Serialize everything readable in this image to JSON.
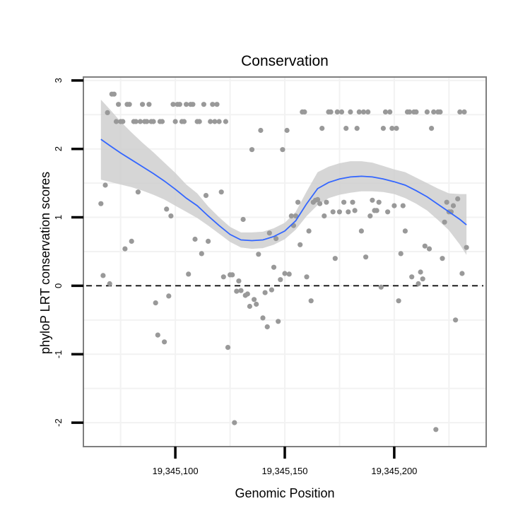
{
  "chart_data": {
    "type": "scatter",
    "title": "Conservation",
    "xlabel": "Genomic Position",
    "ylabel": "phyloP LRT conservation scores",
    "xlim": [
      19345058,
      19345242
    ],
    "ylim": [
      -2.35,
      3.05
    ],
    "x_ticks": [
      {
        "value": 19345100,
        "label": "19,345,100"
      },
      {
        "value": 19345150,
        "label": "19,345,150"
      },
      {
        "value": 19345200,
        "label": "19,345,200"
      }
    ],
    "y_ticks": [
      {
        "value": -2,
        "label": "-2"
      },
      {
        "value": -1,
        "label": "-1"
      },
      {
        "value": 0,
        "label": "0"
      },
      {
        "value": 1,
        "label": "1"
      },
      {
        "value": 2,
        "label": "2"
      },
      {
        "value": 3,
        "label": "3"
      }
    ],
    "reference_line": {
      "y": 0,
      "style": "dashed"
    },
    "colors": {
      "points": "#999999",
      "smooth": "#3366ff",
      "ribbon": "#cccccc",
      "panel_border": "#7f7f7f",
      "grid": "#f2f2f2"
    },
    "points": [
      [
        19345066,
        1.2
      ],
      [
        19345067,
        0.15
      ],
      [
        19345068,
        1.47
      ],
      [
        19345069,
        2.53
      ],
      [
        19345070,
        0.03
      ],
      [
        19345071,
        2.8
      ],
      [
        19345072,
        2.8
      ],
      [
        19345073,
        2.4
      ],
      [
        19345074,
        2.65
      ],
      [
        19345075,
        2.4
      ],
      [
        19345076,
        2.4
      ],
      [
        19345077,
        0.54
      ],
      [
        19345078,
        2.65
      ],
      [
        19345079,
        2.65
      ],
      [
        19345080,
        0.65
      ],
      [
        19345081,
        2.4
      ],
      [
        19345082,
        2.4
      ],
      [
        19345083,
        1.37
      ],
      [
        19345084,
        2.4
      ],
      [
        19345085,
        2.65
      ],
      [
        19345086,
        2.4
      ],
      [
        19345087,
        2.4
      ],
      [
        19345088,
        2.65
      ],
      [
        19345089,
        2.4
      ],
      [
        19345090,
        2.4
      ],
      [
        19345091,
        -0.25
      ],
      [
        19345092,
        -0.72
      ],
      [
        19345093,
        2.4
      ],
      [
        19345094,
        2.4
      ],
      [
        19345095,
        -0.82
      ],
      [
        19345096,
        1.12
      ],
      [
        19345097,
        -0.15
      ],
      [
        19345098,
        1.02
      ],
      [
        19345099,
        2.65
      ],
      [
        19345100,
        2.4
      ],
      [
        19345101,
        2.65
      ],
      [
        19345102,
        2.65
      ],
      [
        19345103,
        2.4
      ],
      [
        19345104,
        2.4
      ],
      [
        19345105,
        2.65
      ],
      [
        19345106,
        0.17
      ],
      [
        19345107,
        2.65
      ],
      [
        19345108,
        2.65
      ],
      [
        19345109,
        0.68
      ],
      [
        19345110,
        2.4
      ],
      [
        19345111,
        2.4
      ],
      [
        19345112,
        0.47
      ],
      [
        19345113,
        2.65
      ],
      [
        19345114,
        1.32
      ],
      [
        19345115,
        0.65
      ],
      [
        19345116,
        2.4
      ],
      [
        19345117,
        2.65
      ],
      [
        19345118,
        2.4
      ],
      [
        19345119,
        2.65
      ],
      [
        19345120,
        2.4
      ],
      [
        19345121,
        1.37
      ],
      [
        19345122,
        0.13
      ],
      [
        19345123,
        2.4
      ],
      [
        19345124,
        -0.9
      ],
      [
        19345125,
        0.16
      ],
      [
        19345126,
        0.16
      ],
      [
        19345127,
        -2.0
      ],
      [
        19345128,
        -0.08
      ],
      [
        19345129,
        0.07
      ],
      [
        19345130,
        -0.07
      ],
      [
        19345131,
        0.97
      ],
      [
        19345132,
        -0.14
      ],
      [
        19345133,
        -0.12
      ],
      [
        19345134,
        -0.3
      ],
      [
        19345135,
        1.99
      ],
      [
        19345136,
        -0.2
      ],
      [
        19345137,
        -0.27
      ],
      [
        19345138,
        0.46
      ],
      [
        19345139,
        2.27
      ],
      [
        19345140,
        -0.47
      ],
      [
        19345141,
        -0.1
      ],
      [
        19345142,
        -0.6
      ],
      [
        19345143,
        0.77
      ],
      [
        19345144,
        -0.06
      ],
      [
        19345145,
        0.27
      ],
      [
        19345146,
        0.69
      ],
      [
        19345147,
        -0.52
      ],
      [
        19345148,
        0.09
      ],
      [
        19345149,
        1.99
      ],
      [
        19345150,
        0.18
      ],
      [
        19345151,
        2.27
      ],
      [
        19345152,
        0.17
      ],
      [
        19345153,
        1.02
      ],
      [
        19345154,
        0.88
      ],
      [
        19345155,
        1.02
      ],
      [
        19345156,
        1.22
      ],
      [
        19345157,
        0.6
      ],
      [
        19345158,
        2.54
      ],
      [
        19345159,
        2.54
      ],
      [
        19345160,
        0.13
      ],
      [
        19345161,
        0.8
      ],
      [
        19345162,
        -0.22
      ],
      [
        19345163,
        1.22
      ],
      [
        19345164,
        1.25
      ],
      [
        19345165,
        1.26
      ],
      [
        19345166,
        1.2
      ],
      [
        19345167,
        2.3
      ],
      [
        19345168,
        1.02
      ],
      [
        19345169,
        1.22
      ],
      [
        19345170,
        2.54
      ],
      [
        19345171,
        2.54
      ],
      [
        19345172,
        1.08
      ],
      [
        19345173,
        0.4
      ],
      [
        19345174,
        2.54
      ],
      [
        19345175,
        1.08
      ],
      [
        19345176,
        2.54
      ],
      [
        19345177,
        1.22
      ],
      [
        19345178,
        2.3
      ],
      [
        19345179,
        1.08
      ],
      [
        19345180,
        2.54
      ],
      [
        19345181,
        1.22
      ],
      [
        19345182,
        1.1
      ],
      [
        19345183,
        2.3
      ],
      [
        19345184,
        2.54
      ],
      [
        19345185,
        0.8
      ],
      [
        19345186,
        2.54
      ],
      [
        19345187,
        0.42
      ],
      [
        19345188,
        2.54
      ],
      [
        19345189,
        1.02
      ],
      [
        19345190,
        1.25
      ],
      [
        19345191,
        1.1
      ],
      [
        19345192,
        1.1
      ],
      [
        19345193,
        1.22
      ],
      [
        19345194,
        -0.02
      ],
      [
        19345195,
        2.3
      ],
      [
        19345196,
        2.54
      ],
      [
        19345197,
        1.08
      ],
      [
        19345198,
        2.54
      ],
      [
        19345199,
        2.3
      ],
      [
        19345200,
        1.17
      ],
      [
        19345201,
        2.3
      ],
      [
        19345202,
        -0.22
      ],
      [
        19345203,
        0.47
      ],
      [
        19345204,
        1.17
      ],
      [
        19345205,
        0.8
      ],
      [
        19345206,
        2.54
      ],
      [
        19345207,
        2.54
      ],
      [
        19345208,
        0.13
      ],
      [
        19345209,
        2.54
      ],
      [
        19345210,
        2.54
      ],
      [
        19345211,
        0.03
      ],
      [
        19345212,
        0.2
      ],
      [
        19345213,
        0.1
      ],
      [
        19345214,
        0.58
      ],
      [
        19345215,
        2.54
      ],
      [
        19345216,
        0.54
      ],
      [
        19345217,
        2.3
      ],
      [
        19345218,
        2.54
      ],
      [
        19345219,
        -2.1
      ],
      [
        19345220,
        2.54
      ],
      [
        19345221,
        2.54
      ],
      [
        19345222,
        0.4
      ],
      [
        19345223,
        0.93
      ],
      [
        19345224,
        1.22
      ],
      [
        19345225,
        1.08
      ],
      [
        19345226,
        1.08
      ],
      [
        19345227,
        1.17
      ],
      [
        19345228,
        -0.5
      ],
      [
        19345229,
        1.27
      ],
      [
        19345230,
        2.54
      ],
      [
        19345231,
        0.18
      ],
      [
        19345232,
        2.54
      ],
      [
        19345233,
        0.56
      ]
    ],
    "smooth": {
      "x": [
        19345066,
        19345070,
        19345075,
        19345080,
        19345085,
        19345090,
        19345095,
        19345100,
        19345105,
        19345110,
        19345115,
        19345120,
        19345125,
        19345130,
        19345135,
        19345140,
        19345145,
        19345150,
        19345155,
        19345160,
        19345165,
        19345170,
        19345175,
        19345180,
        19345185,
        19345190,
        19345195,
        19345200,
        19345205,
        19345210,
        19345215,
        19345220,
        19345225,
        19345230,
        19345233
      ],
      "y": [
        2.14,
        2.05,
        1.94,
        1.84,
        1.74,
        1.64,
        1.53,
        1.41,
        1.28,
        1.17,
        1.02,
        0.88,
        0.75,
        0.67,
        0.66,
        0.67,
        0.72,
        0.8,
        0.95,
        1.2,
        1.42,
        1.51,
        1.56,
        1.59,
        1.6,
        1.59,
        1.56,
        1.52,
        1.47,
        1.39,
        1.3,
        1.19,
        1.08,
        0.97,
        0.89
      ],
      "lower": [
        1.55,
        1.52,
        1.48,
        1.44,
        1.39,
        1.33,
        1.26,
        1.17,
        1.08,
        0.99,
        0.88,
        0.76,
        0.64,
        0.56,
        0.54,
        0.55,
        0.6,
        0.68,
        0.82,
        1.02,
        1.18,
        1.28,
        1.33,
        1.36,
        1.38,
        1.38,
        1.37,
        1.34,
        1.28,
        1.2,
        1.1,
        0.96,
        0.81,
        0.6,
        0.45
      ],
      "upper": [
        2.72,
        2.58,
        2.4,
        2.24,
        2.09,
        1.95,
        1.8,
        1.65,
        1.48,
        1.35,
        1.16,
        1.0,
        0.86,
        0.78,
        0.78,
        0.79,
        0.84,
        0.92,
        1.08,
        1.38,
        1.66,
        1.74,
        1.79,
        1.82,
        1.82,
        1.8,
        1.75,
        1.7,
        1.66,
        1.58,
        1.5,
        1.42,
        1.35,
        1.34,
        1.34
      ]
    }
  }
}
